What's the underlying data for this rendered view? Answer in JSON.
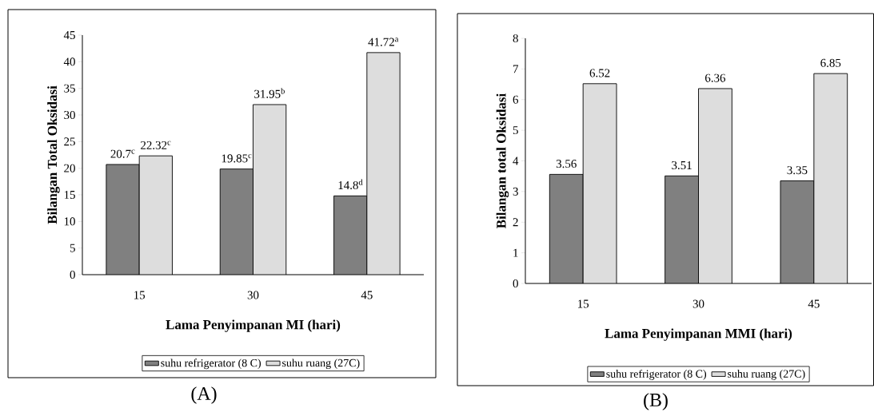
{
  "chart_data": [
    {
      "type": "bar",
      "xlabel": "Lama Penyimpanan MI (hari)",
      "ylabel": "Bilangan Total Oksidasi",
      "categories": [
        "15",
        "30",
        "45"
      ],
      "series": [
        {
          "name": "suhu refrigerator (8 C)",
          "color": "#808080",
          "values": [
            20.7,
            19.85,
            14.8
          ],
          "value_labels": [
            "20.7$^{c}$",
            "19.85$^{c}$",
            "14.8$^{d}$"
          ]
        },
        {
          "name": "suhu ruang (27C)",
          "color": "#dddddd",
          "values": [
            22.32,
            31.95,
            41.72
          ],
          "value_labels": [
            "22.32$^{c}$",
            "31.95$^{b}$",
            "41.72$^{a}$"
          ]
        }
      ],
      "ylim": [
        0,
        45
      ],
      "yticks": [
        0,
        5,
        10,
        15,
        20,
        25,
        30,
        35,
        40,
        45
      ],
      "legend": "bottom",
      "annotations": [
        "(A)"
      ]
    },
    {
      "type": "bar",
      "xlabel": "Lama Penyimpanan MMI (hari)",
      "ylabel": "Bilangan total Oksidasi",
      "categories": [
        "15",
        "30",
        "45"
      ],
      "series": [
        {
          "name": "suhu refrigerator (8 C)",
          "color": "#808080",
          "values": [
            3.56,
            3.51,
            3.35
          ],
          "value_labels": [
            "3.56",
            "3.51",
            "3.35"
          ]
        },
        {
          "name": "suhu ruang (27C)",
          "color": "#dddddd",
          "values": [
            6.52,
            6.36,
            6.85
          ],
          "value_labels": [
            "6.52",
            "6.36",
            "6.85"
          ]
        }
      ],
      "ylim": [
        0,
        8
      ],
      "yticks": [
        0,
        1,
        2,
        3,
        4,
        5,
        6,
        7,
        8
      ],
      "legend": "bottom",
      "annotations": [
        "(B)"
      ]
    }
  ]
}
